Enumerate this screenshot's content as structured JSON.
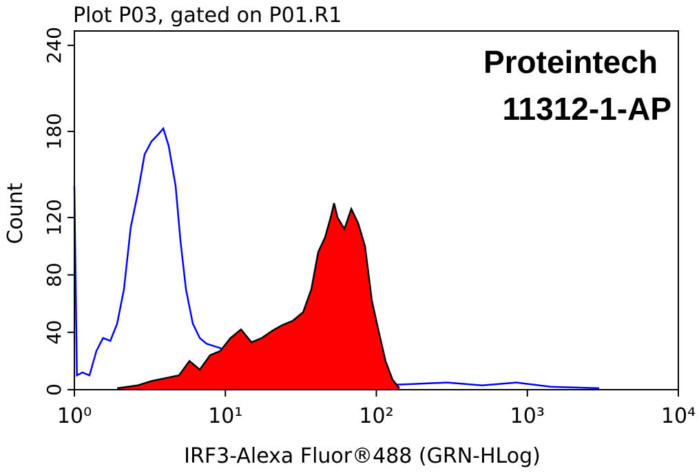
{
  "chart_data": {
    "type": "histogram-overlay",
    "title": "Plot P03, gated on P01.R1",
    "annotations": [
      "Proteintech",
      "11312-1-AP"
    ],
    "x_label": "IRF3-Alexa Fluor®488 (GRN-HLog)",
    "y_label": "Count",
    "xscale": "log",
    "xlim": [
      1,
      10000
    ],
    "xticks": [
      {
        "value": 1,
        "label": "10⁰"
      },
      {
        "value": 10,
        "label": "10¹"
      },
      {
        "value": 100,
        "label": "10²"
      },
      {
        "value": 1000,
        "label": "10³"
      },
      {
        "value": 10000,
        "label": "10⁴"
      }
    ],
    "ylim": [
      0,
      250
    ],
    "yticks": [
      0,
      40,
      80,
      120,
      180,
      240
    ],
    "series": [
      {
        "color": "#0000ff",
        "fill": false,
        "x": [
          1,
          1.04,
          1.13,
          1.26,
          1.4,
          1.55,
          1.73,
          1.92,
          2.13,
          2.36,
          2.63,
          2.92,
          3.24,
          3.6,
          3.88,
          4.21,
          4.68,
          5.04,
          5.48,
          6.09,
          6.77,
          7.51,
          9.27,
          11.4,
          14.1,
          21.5,
          36.3,
          61.4,
          104,
          175,
          296,
          501,
          847,
          1432,
          2990
        ],
        "values": [
          142,
          10,
          12,
          10,
          27,
          36,
          34,
          46,
          70,
          113,
          137,
          164,
          173,
          178,
          182,
          170,
          142,
          104,
          70,
          46,
          36,
          32,
          29,
          17,
          8,
          5,
          4,
          3,
          3,
          4,
          5,
          3,
          5,
          2,
          1
        ]
      },
      {
        "color": "#ff0000",
        "edgecolor": "#000000",
        "fill": true,
        "x": [
          1.92,
          2.63,
          3.24,
          4,
          4.93,
          5.78,
          6.77,
          7.92,
          9.27,
          10.8,
          12.7,
          14.9,
          17.4,
          20.4,
          23.8,
          27.9,
          32.7,
          37.1,
          41.2,
          45.7,
          49.8,
          52.5,
          55.3,
          61.4,
          68.2,
          75.8,
          84.1,
          93.4,
          104,
          115,
          128,
          142
        ],
        "values": [
          1,
          3,
          6,
          8,
          10,
          20,
          14,
          24,
          27,
          36,
          42,
          33,
          36,
          41,
          45,
          48,
          54,
          70,
          96,
          106,
          120,
          130,
          120,
          112,
          126,
          116,
          100,
          62,
          40,
          20,
          7,
          1
        ]
      }
    ]
  }
}
